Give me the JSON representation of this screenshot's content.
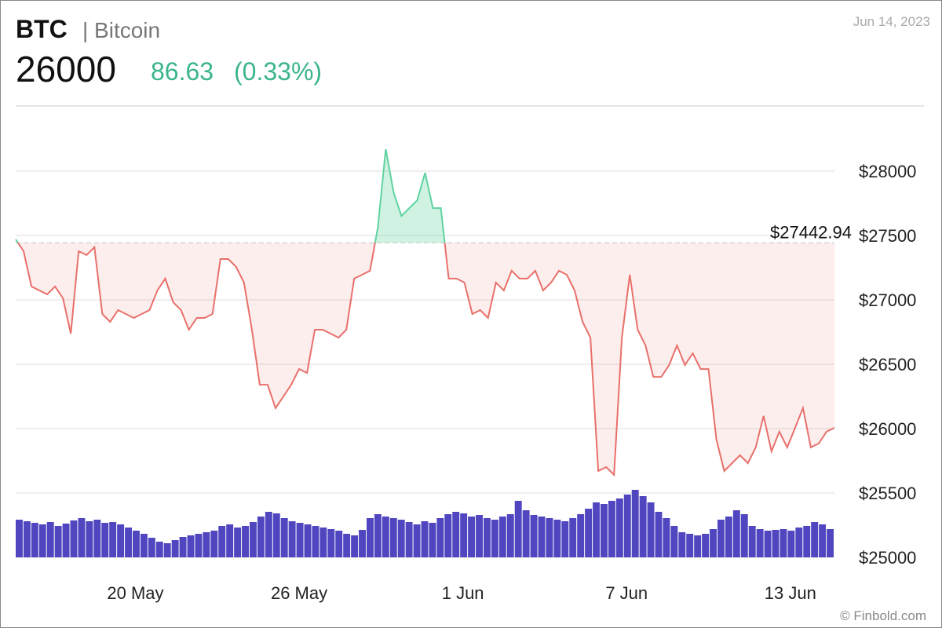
{
  "header": {
    "symbol": "BTC",
    "name": "| Bitcoin",
    "price": 26000,
    "change": 86.63,
    "change_percent_label": "(0.33%)",
    "date": "Jun 14, 2023"
  },
  "footer": {
    "credit": "© Finbold.com"
  },
  "chart_data": {
    "type": "line",
    "xlim": [
      0,
      104
    ],
    "xticks": [
      {
        "value": 15.2,
        "label": "20 May"
      },
      {
        "value": 36,
        "label": "26 May"
      },
      {
        "value": 56.8,
        "label": "1 Jun"
      },
      {
        "value": 77.6,
        "label": "7 Jun"
      },
      {
        "value": 98.4,
        "label": "13 Jun"
      }
    ],
    "ylim": [
      25000,
      28500
    ],
    "yticks": [
      {
        "value": 25000,
        "label": "$25000"
      },
      {
        "value": 25500,
        "label": "$25500"
      },
      {
        "value": 26000,
        "label": "$26000"
      },
      {
        "value": 26500,
        "label": "$26500"
      },
      {
        "value": 27000,
        "label": "$27000"
      },
      {
        "value": 27500,
        "label": "$27500"
      },
      {
        "value": 28000,
        "label": "$28000"
      }
    ],
    "grid": true,
    "reference": {
      "value": 27442.94,
      "label": "$27442.94"
    },
    "color_up": "#5fd3a0",
    "color_down": "#e8706b",
    "values": [
      27470,
      27378,
      27104,
      27073,
      27043,
      27104,
      27012,
      26738,
      27378,
      27348,
      27409,
      26890,
      26829,
      26921,
      26890,
      26860,
      26890,
      26921,
      27073,
      27165,
      26982,
      26921,
      26768,
      26860,
      26860,
      26890,
      27317,
      27317,
      27256,
      27134,
      26768,
      26341,
      26341,
      26159,
      26250,
      26341,
      26463,
      26433,
      26768,
      26768,
      26738,
      26707,
      26768,
      27165,
      27195,
      27226,
      27561,
      28170,
      27835,
      27652,
      27713,
      27774,
      27987,
      27713,
      27713,
      27165,
      27165,
      27134,
      26890,
      26921,
      26860,
      27134,
      27073,
      27226,
      27165,
      27165,
      27226,
      27073,
      27134,
      27226,
      27195,
      27073,
      26829,
      26707,
      25671,
      25701,
      25640,
      26707,
      27195,
      26768,
      26646,
      26402,
      26402,
      26494,
      26646,
      26494,
      26585,
      26463,
      26463,
      25915,
      25671,
      25732,
      25793,
      25732,
      25854,
      26098,
      25823,
      25976,
      25854,
      26006,
      26159,
      25854,
      25884,
      25976,
      26006
    ],
    "volume_lim": [
      0,
      100
    ],
    "volume_color": "#5046c0",
    "volumes": [
      48,
      46,
      44,
      42,
      45,
      40,
      43,
      47,
      50,
      46,
      48,
      44,
      45,
      42,
      38,
      34,
      30,
      25,
      20,
      18,
      22,
      26,
      28,
      30,
      32,
      34,
      40,
      42,
      38,
      40,
      45,
      52,
      58,
      56,
      50,
      46,
      44,
      42,
      40,
      38,
      36,
      34,
      30,
      28,
      35,
      50,
      55,
      52,
      50,
      48,
      45,
      42,
      46,
      44,
      50,
      55,
      58,
      56,
      52,
      54,
      50,
      48,
      52,
      55,
      72,
      60,
      54,
      52,
      50,
      48,
      46,
      50,
      55,
      62,
      70,
      68,
      72,
      75,
      80,
      86,
      78,
      70,
      58,
      50,
      40,
      32,
      30,
      28,
      30,
      36,
      48,
      52,
      60,
      55,
      40,
      36,
      34,
      35,
      36,
      34,
      38,
      40,
      45,
      42,
      36
    ]
  }
}
